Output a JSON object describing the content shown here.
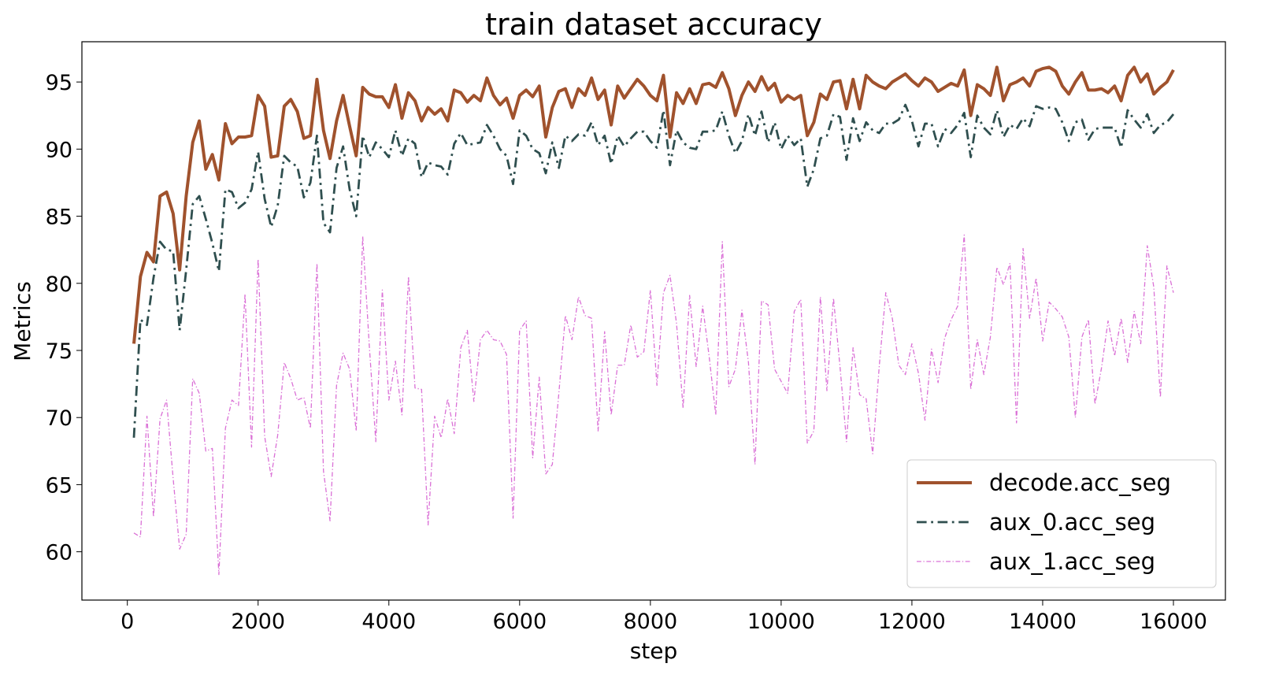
{
  "chart_data": {
    "type": "line",
    "title": "train dataset accuracy",
    "xlabel": "step",
    "ylabel": "Metrics",
    "x": [
      100,
      200,
      300,
      400,
      500,
      600,
      700,
      800,
      900,
      1000,
      1100,
      1200,
      1300,
      1400,
      1500,
      1600,
      1700,
      1800,
      1900,
      2000,
      2100,
      2200,
      2300,
      2400,
      2500,
      2600,
      2700,
      2800,
      2900,
      3000,
      3100,
      3200,
      3300,
      3400,
      3500,
      3600,
      3700,
      3800,
      3900,
      4000,
      4100,
      4200,
      4300,
      4400,
      4500,
      4600,
      4700,
      4800,
      4900,
      5000,
      5100,
      5200,
      5300,
      5400,
      5500,
      5600,
      5700,
      5800,
      5900,
      6000,
      6100,
      6200,
      6300,
      6400,
      6500,
      6600,
      6700,
      6800,
      6900,
      7000,
      7100,
      7200,
      7300,
      7400,
      7500,
      7600,
      7700,
      7800,
      7900,
      8000,
      8100,
      8200,
      8300,
      8400,
      8500,
      8600,
      8700,
      8800,
      8900,
      9000,
      9100,
      9200,
      9300,
      9400,
      9500,
      9600,
      9700,
      9800,
      9900,
      10000,
      10100,
      10200,
      10300,
      10400,
      10500,
      10600,
      10700,
      10800,
      10900,
      11000,
      11100,
      11200,
      11300,
      11400,
      11500,
      11600,
      11700,
      11800,
      11900,
      12000,
      12100,
      12200,
      12300,
      12400,
      12500,
      12600,
      12700,
      12800,
      12900,
      13000,
      13100,
      13200,
      13300,
      13400,
      13500,
      13600,
      13700,
      13800,
      13900,
      14000,
      14100,
      14200,
      14300,
      14400,
      14500,
      14600,
      14700,
      14800,
      14900,
      15000,
      15100,
      15200,
      15300,
      15400,
      15500,
      15600,
      15700,
      15800,
      15900,
      16000
    ],
    "series": [
      {
        "name": "decode.acc_seg",
        "color": "#a0522d",
        "linestyle": "solid",
        "linewidth": 4,
        "values": [
          75.5,
          80.5,
          82.3,
          81.6,
          86.5,
          86.8,
          85.2,
          81,
          86.5,
          90.5,
          92.1,
          88.5,
          89.6,
          87.7,
          91.9,
          90.4,
          90.9,
          90.9,
          91,
          94,
          93.2,
          89.4,
          89.5,
          93.2,
          93.7,
          92.8,
          90.8,
          91,
          95.2,
          91.4,
          89.3,
          92.1,
          94,
          91.7,
          89.5,
          94.6,
          94.1,
          93.9,
          93.9,
          93.1,
          94.8,
          92.3,
          94.2,
          93.6,
          92.1,
          93.1,
          92.6,
          93,
          92.1,
          94.4,
          94.2,
          93.5,
          94,
          93.6,
          95.3,
          94,
          93.3,
          93.8,
          92.3,
          94,
          94.4,
          93.9,
          94.7,
          90.9,
          93.1,
          94.3,
          94.5,
          93.1,
          94.5,
          94,
          95.3,
          93.7,
          94.4,
          91.8,
          94.7,
          93.8,
          94.5,
          95.2,
          94.7,
          94,
          93.6,
          95.5,
          90.9,
          94.2,
          93.4,
          94.5,
          93.4,
          94.8,
          94.9,
          94.6,
          95.7,
          94.5,
          92.5,
          94,
          95,
          94.3,
          95.4,
          94.4,
          94.9,
          93.5,
          94,
          93.7,
          94,
          91,
          92,
          94.1,
          93.7,
          95,
          95.1,
          93,
          95.2,
          93,
          95.5,
          95,
          94.7,
          94.5,
          95,
          95.3,
          95.6,
          95.1,
          94.7,
          95.3,
          95,
          94.3,
          94.6,
          94.9,
          94.7,
          95.9,
          92.5,
          94.8,
          94.5,
          94,
          96.1,
          93.6,
          94.8,
          95,
          95.3,
          94.7,
          95.8,
          96,
          96.1,
          95.8,
          94.7,
          94.1,
          95,
          95.7,
          94.4,
          94.4,
          94.5,
          94.2,
          94.7,
          93.6,
          95.5,
          96.1,
          95,
          95.6,
          94.1,
          94.6,
          95,
          95.9
        ]
      },
      {
        "name": "aux_0.acc_seg",
        "color": "#2f4f4f",
        "linestyle": "dashdot",
        "linewidth": 2.8,
        "values": [
          68.5,
          77.3,
          76.9,
          80.4,
          83.1,
          82.5,
          82.4,
          76.5,
          81,
          85.9,
          86.5,
          84.8,
          83,
          80.9,
          87,
          86.8,
          85.6,
          86,
          87,
          89.8,
          86.3,
          84.2,
          85.8,
          89.5,
          89,
          88.7,
          86.4,
          87.5,
          91,
          84.5,
          83.8,
          88.6,
          90.2,
          87,
          85,
          91,
          89.4,
          90.5,
          90,
          89.4,
          91.4,
          89.5,
          90.8,
          90.4,
          87.9,
          89,
          88.8,
          88.7,
          88.1,
          90.4,
          91.2,
          90.3,
          90.4,
          90.5,
          91.8,
          91,
          90,
          89.5,
          87.4,
          91.4,
          91,
          90,
          89.7,
          88.2,
          90.5,
          88.6,
          91,
          90.6,
          91.1,
          91,
          92,
          90.3,
          91,
          88.9,
          91,
          90.2,
          90.8,
          91.3,
          91.3,
          90.6,
          90.1,
          92.9,
          88.8,
          91.4,
          90.5,
          90.1,
          90,
          91.3,
          91.3,
          91.4,
          92.8,
          91,
          89.7,
          90.6,
          92.6,
          91,
          92.8,
          90.5,
          92,
          90,
          91,
          90.3,
          90.8,
          87.2,
          88.5,
          90.8,
          91,
          92.6,
          92.4,
          89.2,
          92.3,
          90.6,
          92,
          91.4,
          91.2,
          91.9,
          91.9,
          92.2,
          93.3,
          92.1,
          90.2,
          91.9,
          91.9,
          90.2,
          91.5,
          91.2,
          91.8,
          92.7,
          89.4,
          92.5,
          91.6,
          91.1,
          92.9,
          90.9,
          91.8,
          91.5,
          92.3,
          91.7,
          93.2,
          93,
          93.1,
          93,
          92,
          90.6,
          92,
          92.2,
          90.7,
          91.5,
          91.6,
          91.6,
          91.6,
          90.1,
          92.9,
          92.2,
          91.6,
          92.6,
          91.2,
          91.8,
          92,
          92.6
        ]
      },
      {
        "name": "aux_1.acc_seg",
        "color": "#da70d6",
        "linestyle": "dashdot",
        "linewidth": 1.3,
        "values": [
          61.4,
          61.1,
          70.1,
          62.6,
          69.9,
          71.3,
          65.5,
          60.2,
          61.3,
          72.9,
          71.8,
          67.5,
          67.7,
          58.3,
          69.2,
          71.3,
          70.9,
          79.2,
          67.8,
          81.8,
          68.6,
          65.6,
          68.7,
          74.1,
          72.9,
          71.3,
          71.5,
          69.2,
          81.5,
          66,
          62.3,
          72.4,
          74.8,
          73.6,
          69,
          83.5,
          75.4,
          68.2,
          79.5,
          71.3,
          74.2,
          70.2,
          80.5,
          72.2,
          72.1,
          62,
          70.1,
          68.5,
          71.4,
          68.8,
          75.2,
          76.5,
          71.2,
          75.8,
          76.5,
          75.8,
          75.7,
          74.7,
          62.5,
          76.5,
          77.2,
          67,
          73,
          65.8,
          66.5,
          71.8,
          77.6,
          75.8,
          79,
          77.6,
          77.4,
          69,
          76.4,
          70.2,
          73.9,
          73.9,
          76.9,
          74.5,
          74.9,
          79.5,
          72.4,
          79.3,
          80.6,
          77,
          70.7,
          79.1,
          73.8,
          78.3,
          74.5,
          70.2,
          83.1,
          72.3,
          73.6,
          78,
          74.1,
          66.5,
          78.7,
          78.4,
          73.6,
          72.7,
          71.8,
          77.9,
          78.8,
          68.1,
          69,
          79,
          72,
          78.9,
          73.8,
          68.2,
          75.2,
          71.7,
          71.4,
          67.3,
          73.8,
          79.3,
          77.4,
          73.9,
          73.2,
          75.5,
          73.3,
          69.8,
          75.1,
          72.6,
          75.9,
          77.3,
          78.3,
          83.6,
          72.1,
          75.8,
          73.2,
          76,
          81.2,
          79.9,
          81.5,
          69.6,
          82.6,
          77.4,
          80.4,
          75.7,
          78.6,
          78.1,
          77.5,
          76,
          70,
          76,
          77.3,
          71,
          73.7,
          77.2,
          74.6,
          77.4,
          74.1,
          77.9,
          75.5,
          82.8,
          79.7,
          71.5,
          81.3,
          79.3
        ]
      }
    ],
    "xlim": [
      -695,
      16795
    ],
    "ylim": [
      56.4,
      98.0
    ],
    "xticks": [
      0,
      2000,
      4000,
      6000,
      8000,
      10000,
      12000,
      14000,
      16000
    ],
    "yticks": [
      60,
      65,
      70,
      75,
      80,
      85,
      90,
      95
    ],
    "legend": "lower right"
  }
}
